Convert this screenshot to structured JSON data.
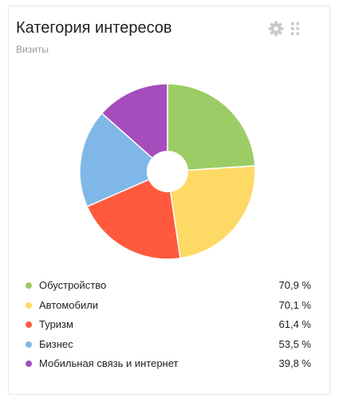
{
  "widget": {
    "title": "Категория интересов",
    "subtitle": "Визиты",
    "settings_icon": "gear-icon",
    "drag_icon": "drag-handle-icon"
  },
  "chart_data": {
    "type": "pie",
    "title": "Категория интересов",
    "subtitle": "Визиты",
    "categories": [
      "Обустройство",
      "Автомобили",
      "Туризм",
      "Бизнес",
      "Мобильная связь и интернет"
    ],
    "values": [
      70.9,
      70.1,
      61.4,
      53.5,
      39.8
    ],
    "value_labels": [
      "70,9 %",
      "70,1 %",
      "61,4 %",
      "53,5 %",
      "39,8 %"
    ],
    "colors": [
      "#9ccc65",
      "#ffd966",
      "#ff5a3d",
      "#7fb8e8",
      "#a64dbd"
    ],
    "legend_placement": "bottom",
    "donut_hole": true
  },
  "legend": [
    {
      "label": "Обустройство",
      "value": "70,9 %",
      "color": "#9ccc65"
    },
    {
      "label": "Автомобили",
      "value": "70,1 %",
      "color": "#ffd966"
    },
    {
      "label": "Туризм",
      "value": "61,4 %",
      "color": "#ff5a3d"
    },
    {
      "label": "Бизнес",
      "value": "53,5 %",
      "color": "#7fb8e8"
    },
    {
      "label": "Мобильная связь и интернет",
      "value": "39,8 %",
      "color": "#a64dbd"
    }
  ]
}
